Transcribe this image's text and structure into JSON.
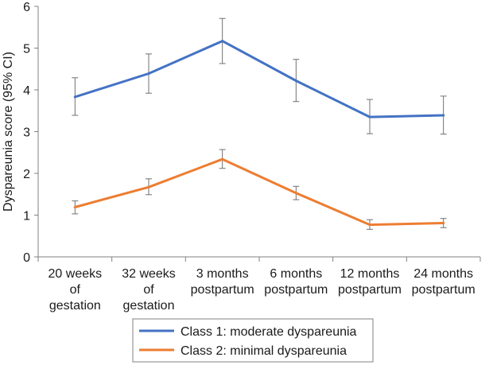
{
  "chart_data": {
    "type": "line",
    "title": "",
    "xlabel": "",
    "ylabel": "Dyspareunia score (95% CI)",
    "ylim": [
      0,
      6
    ],
    "yticks": [
      0,
      1,
      2,
      3,
      4,
      5,
      6
    ],
    "grid": false,
    "legend_position": "bottom-center",
    "categories": [
      [
        "20 weeks",
        "of",
        "gestation"
      ],
      [
        "32 weeks",
        "of",
        "gestation"
      ],
      [
        "3 months",
        "postpartum"
      ],
      [
        "6 months",
        "postpartum"
      ],
      [
        "12 months",
        "postpartum"
      ],
      [
        "24 months",
        "postpartum"
      ]
    ],
    "series": [
      {
        "name": "Class 1: moderate dyspareunia",
        "color": "#4472C4",
        "values": [
          3.83,
          4.39,
          5.17,
          4.22,
          3.35,
          3.39
        ],
        "ci_low": [
          3.39,
          3.92,
          4.63,
          3.72,
          2.95,
          2.94
        ],
        "ci_high": [
          4.29,
          4.86,
          5.71,
          4.73,
          3.77,
          3.85
        ]
      },
      {
        "name": "Class 2: minimal dyspareunia",
        "color": "#ED7D31",
        "values": [
          1.19,
          1.67,
          2.34,
          1.53,
          0.77,
          0.81
        ],
        "ci_low": [
          1.03,
          1.49,
          2.12,
          1.37,
          0.66,
          0.7
        ],
        "ci_high": [
          1.34,
          1.87,
          2.57,
          1.69,
          0.89,
          0.92
        ]
      }
    ]
  }
}
